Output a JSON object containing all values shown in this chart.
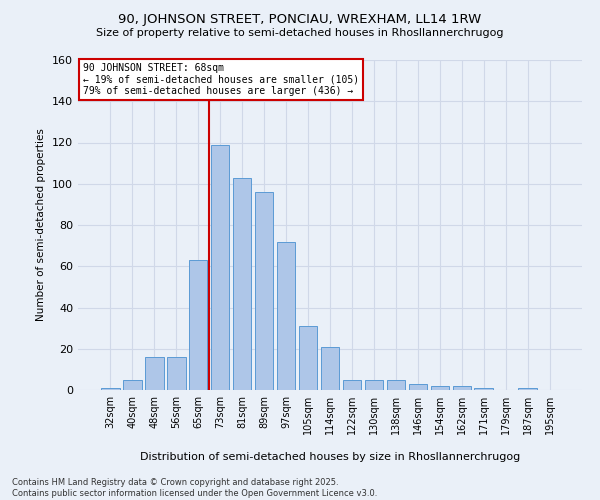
{
  "title": "90, JOHNSON STREET, PONCIAU, WREXHAM, LL14 1RW",
  "subtitle": "Size of property relative to semi-detached houses in Rhosllannerchrugog",
  "xlabel": "Distribution of semi-detached houses by size in Rhosllannerchrugog",
  "ylabel": "Number of semi-detached properties",
  "categories": [
    "32sqm",
    "40sqm",
    "48sqm",
    "56sqm",
    "65sqm",
    "73sqm",
    "81sqm",
    "89sqm",
    "97sqm",
    "105sqm",
    "114sqm",
    "122sqm",
    "130sqm",
    "138sqm",
    "146sqm",
    "154sqm",
    "162sqm",
    "171sqm",
    "179sqm",
    "187sqm",
    "195sqm"
  ],
  "values": [
    1,
    5,
    16,
    16,
    63,
    119,
    103,
    96,
    72,
    31,
    21,
    5,
    5,
    5,
    3,
    2,
    2,
    1,
    0,
    1,
    0
  ],
  "bar_color": "#aec6e8",
  "bar_edge_color": "#5b9bd5",
  "property_line_x": 4.5,
  "annotation_title": "90 JOHNSON STREET: 68sqm",
  "annotation_line1": "← 19% of semi-detached houses are smaller (105)",
  "annotation_line2": "79% of semi-detached houses are larger (436) →",
  "annotation_box_color": "#ffffff",
  "annotation_box_edge": "#cc0000",
  "vline_color": "#cc0000",
  "ylim": [
    0,
    160
  ],
  "yticks": [
    0,
    20,
    40,
    60,
    80,
    100,
    120,
    140,
    160
  ],
  "grid_color": "#d0d8e8",
  "background_color": "#eaf0f8",
  "footer": "Contains HM Land Registry data © Crown copyright and database right 2025.\nContains public sector information licensed under the Open Government Licence v3.0."
}
